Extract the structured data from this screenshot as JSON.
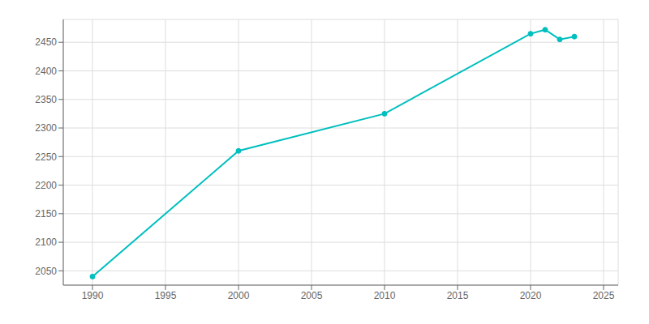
{
  "chart_data": {
    "type": "line",
    "x": [
      1990,
      2000,
      2010,
      2020,
      2021,
      2022,
      2023
    ],
    "values": [
      2040,
      2260,
      2325,
      2465,
      2472,
      2455,
      2460
    ],
    "color": "#00BFBF",
    "marker": "circle",
    "xlim": [
      1988,
      2026
    ],
    "ylim": [
      2025,
      2490
    ],
    "xticks": [
      1990,
      1995,
      2000,
      2005,
      2010,
      2015,
      2020,
      2025
    ],
    "yticks": [
      2050,
      2100,
      2150,
      2200,
      2250,
      2300,
      2350,
      2400,
      2450
    ],
    "grid": true
  }
}
